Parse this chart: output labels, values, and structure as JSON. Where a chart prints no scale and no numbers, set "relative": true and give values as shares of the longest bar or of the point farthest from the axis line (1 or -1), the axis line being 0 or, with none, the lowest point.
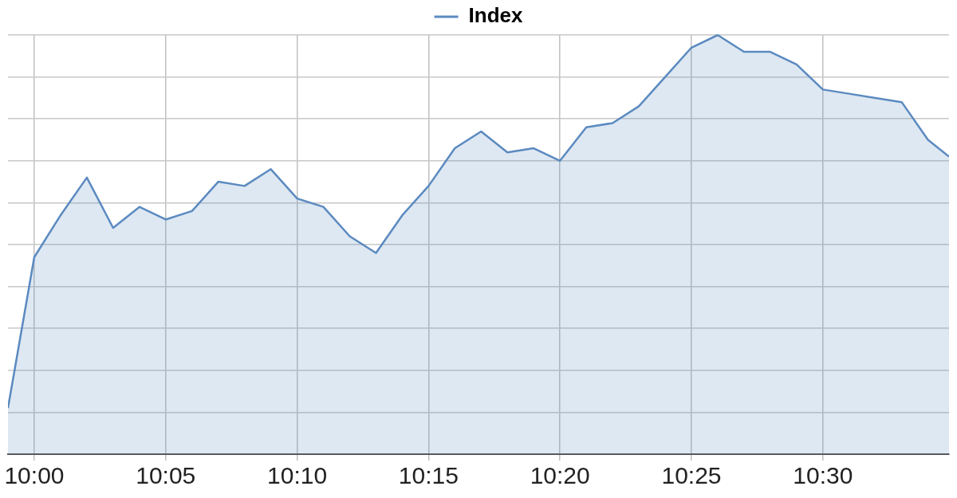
{
  "chart_data": {
    "type": "area",
    "relative": true,
    "grid": true,
    "legend": "top",
    "marker": "none",
    "line_style": "solid",
    "xlim": [
      9.98333,
      10.58
    ],
    "xticks": [
      {
        "value": 10,
        "label": "10:00"
      },
      {
        "value": 10.08333,
        "label": "10:05"
      },
      {
        "value": 10.16667,
        "label": "10:10"
      },
      {
        "value": 10.25,
        "label": "10:15"
      },
      {
        "value": 10.33333,
        "label": "10:20"
      },
      {
        "value": 10.41667,
        "label": "10:25"
      },
      {
        "value": 10.5,
        "label": "10:30"
      }
    ],
    "series": [
      {
        "name": "Index",
        "color": "#5b8ac0",
        "x": [
          9.98333,
          10,
          10.01667,
          10.03333,
          10.05,
          10.06667,
          10.08333,
          10.1,
          10.11667,
          10.13333,
          10.15,
          10.16667,
          10.18333,
          10.2,
          10.21667,
          10.23333,
          10.25,
          10.26667,
          10.28333,
          10.3,
          10.31667,
          10.33333,
          10.35,
          10.36667,
          10.38333,
          10.4,
          10.41667,
          10.43333,
          10.45,
          10.46667,
          10.48333,
          10.5,
          10.51667,
          10.53333,
          10.55,
          10.56667,
          10.58
        ],
        "values": [
          0.11,
          0.47,
          0.57,
          0.66,
          0.54,
          0.59,
          0.56,
          0.58,
          0.65,
          0.64,
          0.68,
          0.61,
          0.59,
          0.52,
          0.48,
          0.57,
          0.64,
          0.73,
          0.77,
          0.72,
          0.73,
          0.7,
          0.78,
          0.79,
          0.83,
          0.9,
          0.97,
          1,
          0.96,
          0.96,
          0.93,
          0.87,
          0.86,
          0.85,
          0.84,
          0.75,
          0.71
        ]
      }
    ]
  }
}
